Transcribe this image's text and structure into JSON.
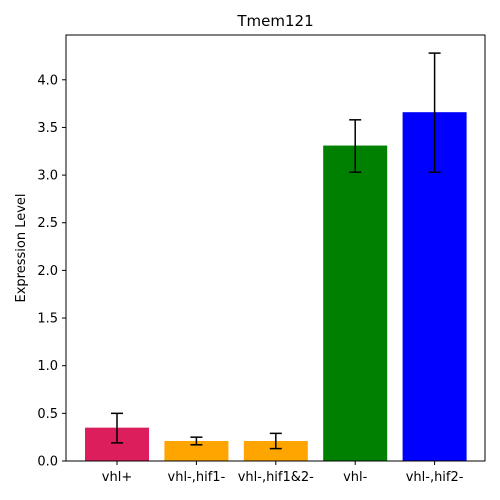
{
  "chart_data": {
    "type": "bar",
    "title": "Tmem121",
    "xlabel": "",
    "ylabel": "Expression Level",
    "categories": [
      "vhl+",
      "vhl-,hif1-",
      "vhl-,hif1&2-",
      "vhl-",
      "vhl-,hif2-"
    ],
    "values": [
      0.35,
      0.21,
      0.21,
      3.31,
      3.66
    ],
    "error_low": [
      0.19,
      0.17,
      0.13,
      3.03,
      3.03
    ],
    "error_high": [
      0.5,
      0.25,
      0.29,
      3.58,
      4.28
    ],
    "colors": [
      "#dc1f5c",
      "#ffa500",
      "#ffa500",
      "#008000",
      "#0000ff"
    ],
    "ylim": [
      0,
      4.47
    ],
    "yticks": [
      0.0,
      0.5,
      1.0,
      1.5,
      2.0,
      2.5,
      3.0,
      3.5,
      4.0
    ],
    "ytick_labels": [
      "0.0",
      "0.5",
      "1.0",
      "1.5",
      "2.0",
      "2.5",
      "3.0",
      "3.5",
      "4.0"
    ],
    "grid": false,
    "legend": "none"
  }
}
